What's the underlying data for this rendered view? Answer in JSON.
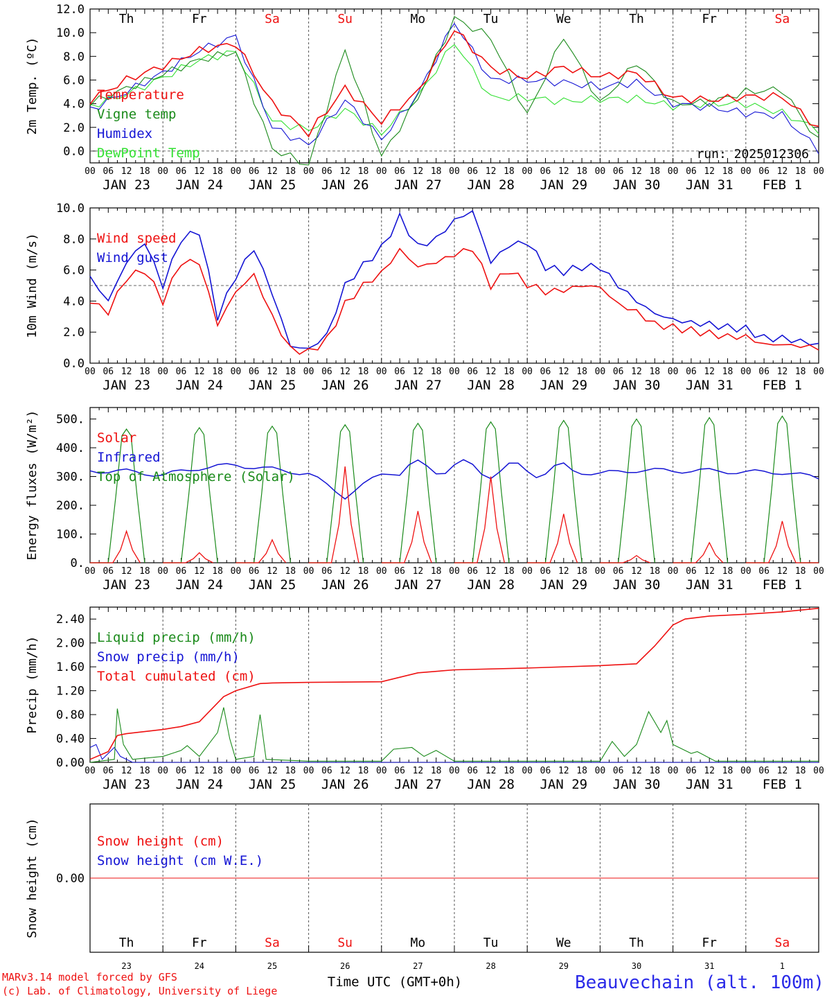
{
  "meta": {
    "model_line1": "MARv3.14 model forced by GFS",
    "model_line2": "(c) Lab. of Climatology, University of Liege",
    "location": "Beauvechain (alt. 100m)",
    "time_label": "Time UTC (GMT+0h)",
    "run": "run: 2025012306"
  },
  "colors": {
    "red": "#ee1111",
    "green": "#1a8a1a",
    "blue": "#1414d4",
    "lightgreen": "#33e033",
    "grid": "#555555"
  },
  "axis": {
    "hour_ticks": [
      "00",
      "06",
      "12",
      "18"
    ],
    "hour_end": "00",
    "date_labels": [
      "JAN 23",
      "JAN 24",
      "JAN 25",
      "JAN 26",
      "JAN 27",
      "JAN 28",
      "JAN 29",
      "JAN 30",
      "JAN 31",
      "FEB  1"
    ],
    "day_labels": [
      "Th",
      "Fr",
      "Sa",
      "Su",
      "Mo",
      "Tu",
      "We",
      "Th",
      "Fr",
      "Sa"
    ],
    "day_numbers": [
      "23",
      "24",
      "25",
      "26",
      "27",
      "28",
      "29",
      "30",
      "31",
      "1"
    ],
    "weekend_days": [
      2,
      3,
      9
    ]
  },
  "chart_data": [
    {
      "type": "line",
      "id": "temp",
      "ylabel": "2m Temp. (ºC)",
      "ylim": [
        -1,
        12
      ],
      "yticks": [
        "0.0",
        "2.0",
        "4.0",
        "6.0",
        "8.0",
        "10.0",
        "12.0"
      ],
      "ytick_values": [
        0,
        2,
        4,
        6,
        8,
        10,
        12
      ],
      "dashed_reference": 0,
      "x_hours": [
        0,
        12,
        24,
        36,
        48,
        60,
        72,
        84,
        96,
        108,
        120,
        132,
        144,
        156,
        168,
        180,
        192,
        204,
        216,
        228,
        240
      ],
      "series": [
        {
          "name": "Temperature",
          "color": "red",
          "values": [
            4.3,
            6.0,
            7.2,
            8.5,
            9.1,
            4.0,
            1.5,
            5.3,
            2.5,
            5.0,
            10.3,
            7.0,
            6.2,
            7.1,
            6.3,
            6.6,
            4.5,
            4.3,
            4.6,
            4.6,
            1.9
          ]
        },
        {
          "name": "Vigne temp",
          "color": "green",
          "values": [
            4.0,
            5.3,
            6.5,
            7.7,
            8.4,
            0.2,
            -1.2,
            8.6,
            -0.5,
            4.5,
            11.2,
            9.6,
            3.0,
            9.7,
            4.0,
            7.5,
            4.0,
            4.1,
            5.0,
            5.2,
            0.8
          ]
        },
        {
          "name": "Humidex",
          "color": "blue",
          "values": [
            3.5,
            5.0,
            6.6,
            8.5,
            9.7,
            2.0,
            0.5,
            4.3,
            1.0,
            4.8,
            10.9,
            6.0,
            6.0,
            5.8,
            5.4,
            5.8,
            4.0,
            3.7,
            3.2,
            3.0,
            0.1
          ]
        },
        {
          "name": "DewPoint Temp",
          "color": "lightgreen",
          "values": [
            3.8,
            4.8,
            6.2,
            7.7,
            8.4,
            2.5,
            1.8,
            3.5,
            1.5,
            4.6,
            9.2,
            4.5,
            4.5,
            4.2,
            4.4,
            4.4,
            3.8,
            4.0,
            4.0,
            3.2,
            1.8
          ]
        }
      ],
      "legend": [
        {
          "text": "Temperature",
          "color": "red"
        },
        {
          "text": "Vigne temp",
          "color": "green"
        },
        {
          "text": "Humidex",
          "color": "blue"
        },
        {
          "text": "DewPoint Temp",
          "color": "lightgreen"
        }
      ]
    },
    {
      "type": "line",
      "id": "wind",
      "ylabel": "10m Wind (m/s)",
      "ylim": [
        0,
        10
      ],
      "yticks": [
        "0.0",
        "2.0",
        "4.0",
        "6.0",
        "8.0",
        "10.0"
      ],
      "ytick_values": [
        0,
        2,
        4,
        6,
        8,
        10
      ],
      "dashed_reference": 5,
      "x_hours": [
        0,
        6,
        12,
        18,
        24,
        30,
        36,
        42,
        48,
        54,
        60,
        66,
        72,
        78,
        84,
        90,
        96,
        102,
        108,
        114,
        120,
        126,
        132,
        138,
        144,
        150,
        156,
        162,
        168,
        174,
        180,
        186,
        192,
        198,
        204,
        210,
        216,
        222,
        228,
        234,
        240
      ],
      "series": [
        {
          "name": "Wind speed",
          "color": "red",
          "values": [
            4.0,
            3.3,
            5.5,
            6.0,
            4.0,
            6.5,
            6.5,
            2.5,
            4.6,
            5.7,
            3.0,
            0.9,
            0.7,
            1.5,
            3.8,
            5.0,
            5.8,
            7.3,
            6.2,
            6.5,
            7.0,
            7.4,
            5.0,
            6.0,
            5.1,
            4.6,
            4.7,
            5.0,
            4.9,
            3.8,
            3.3,
            2.5,
            2.3,
            2.1,
            1.9,
            1.7,
            1.7,
            1.2,
            1.2,
            1.1,
            1.0
          ]
        },
        {
          "name": "Wind gust",
          "color": "blue",
          "values": [
            5.5,
            4.0,
            6.5,
            7.8,
            5.0,
            8.0,
            8.5,
            3.0,
            5.6,
            7.4,
            4.5,
            1.1,
            0.9,
            1.8,
            5.0,
            6.3,
            7.4,
            9.4,
            7.5,
            8.0,
            9.2,
            9.8,
            6.5,
            7.6,
            7.8,
            6.2,
            5.9,
            6.2,
            6.2,
            5.0,
            4.0,
            3.2,
            2.8,
            2.6,
            2.5,
            2.3,
            2.2,
            1.6,
            1.6,
            1.4,
            1.2
          ]
        }
      ],
      "legend": [
        {
          "text": "Wind speed",
          "color": "red"
        },
        {
          "text": "Wind gust",
          "color": "blue"
        }
      ]
    },
    {
      "type": "line",
      "id": "energy",
      "ylabel": "Energy fluxes (W/m²)",
      "ylim": [
        0,
        540
      ],
      "yticks": [
        "0.",
        "100.",
        "200.",
        "300.",
        "400.",
        "500."
      ],
      "ytick_values": [
        0,
        100,
        200,
        300,
        400,
        500
      ],
      "daily_peak_hour": 12,
      "top_of_atmosphere_daily_peaks": [
        465,
        470,
        475,
        480,
        485,
        490,
        495,
        500,
        505,
        510
      ],
      "solar_daily_peaks": [
        110,
        35,
        80,
        335,
        180,
        300,
        170,
        25,
        70,
        145
      ],
      "infrared": {
        "x_hours": [
          0,
          12,
          24,
          36,
          48,
          60,
          72,
          84,
          96,
          108,
          120,
          132,
          144,
          156,
          168,
          180,
          192,
          204,
          216,
          228,
          240
        ],
        "values": [
          320,
          318,
          305,
          330,
          340,
          325,
          310,
          230,
          310,
          330,
          335,
          320,
          325,
          320,
          310,
          322,
          320,
          320,
          315,
          315,
          295
        ]
      },
      "legend": [
        {
          "text": "Solar",
          "color": "red"
        },
        {
          "text": "Infrared",
          "color": "blue"
        },
        {
          "text": "Top of Atmosphere (Solar)",
          "color": "green"
        }
      ]
    },
    {
      "type": "line",
      "id": "precip",
      "ylabel": "Precip (mm/h)",
      "ylim": [
        0,
        2.6
      ],
      "yticks": [
        "0.00",
        "0.40",
        "0.80",
        "1.20",
        "1.60",
        "2.00",
        "2.40"
      ],
      "ytick_values": [
        0,
        0.4,
        0.8,
        1.2,
        1.6,
        2.0,
        2.4
      ],
      "series": [
        {
          "name": "Total cumulated (cm)",
          "color": "red",
          "x_hours": [
            0,
            6,
            9,
            12,
            24,
            30,
            36,
            44,
            48,
            56,
            60,
            72,
            96,
            108,
            120,
            144,
            168,
            180,
            186,
            192,
            196,
            204,
            216,
            228,
            240
          ],
          "values": [
            0.05,
            0.18,
            0.45,
            0.48,
            0.55,
            0.6,
            0.68,
            1.1,
            1.2,
            1.32,
            1.33,
            1.34,
            1.35,
            1.5,
            1.55,
            1.58,
            1.62,
            1.65,
            1.95,
            2.3,
            2.4,
            2.45,
            2.48,
            2.52,
            2.58
          ]
        },
        {
          "name": "Liquid precip (mm/h)",
          "color": "green",
          "x_hours": [
            0,
            8,
            9,
            11,
            14,
            24,
            30,
            32,
            36,
            42,
            44,
            46,
            48,
            54,
            56,
            58,
            72,
            96,
            100,
            106,
            110,
            114,
            120,
            144,
            168,
            172,
            176,
            180,
            184,
            188,
            190,
            192,
            198,
            200,
            206,
            216,
            240
          ],
          "values": [
            0,
            0.05,
            0.9,
            0.3,
            0.05,
            0.1,
            0.2,
            0.28,
            0.1,
            0.5,
            0.92,
            0.4,
            0.05,
            0.1,
            0.8,
            0.05,
            0.02,
            0.02,
            0.22,
            0.25,
            0.1,
            0.2,
            0.02,
            0.02,
            0.02,
            0.35,
            0.1,
            0.3,
            0.85,
            0.5,
            0.7,
            0.3,
            0.15,
            0.18,
            0.02,
            0.02,
            0.02
          ]
        },
        {
          "name": "Snow precip (mm/h)",
          "color": "blue",
          "x_hours": [
            0,
            2,
            4,
            8,
            10,
            14,
            24,
            240
          ],
          "values": [
            0.25,
            0.3,
            0.05,
            0.25,
            0.1,
            0,
            0,
            0
          ]
        }
      ],
      "legend": [
        {
          "text": "Liquid precip (mm/h)",
          "color": "green"
        },
        {
          "text": "Snow precip (mm/h)",
          "color": "blue"
        },
        {
          "text": "Total cumulated (cm)",
          "color": "red"
        }
      ]
    },
    {
      "type": "line",
      "id": "snow",
      "ylabel": "Snow height (cm)",
      "ylim": [
        -1,
        1
      ],
      "yticks": [
        "0.00"
      ],
      "ytick_values": [
        0
      ],
      "series": [
        {
          "name": "Snow height (cm)",
          "color": "red",
          "x_hours": [
            0,
            240
          ],
          "values": [
            0,
            0
          ]
        },
        {
          "name": "Snow height (cm W.E.)",
          "color": "blue",
          "x_hours": [
            0,
            240
          ],
          "values": [
            0,
            0
          ]
        }
      ],
      "legend": [
        {
          "text": "Snow height (cm)",
          "color": "red"
        },
        {
          "text": "Snow height (cm W.E.)",
          "color": "blue"
        }
      ]
    }
  ]
}
